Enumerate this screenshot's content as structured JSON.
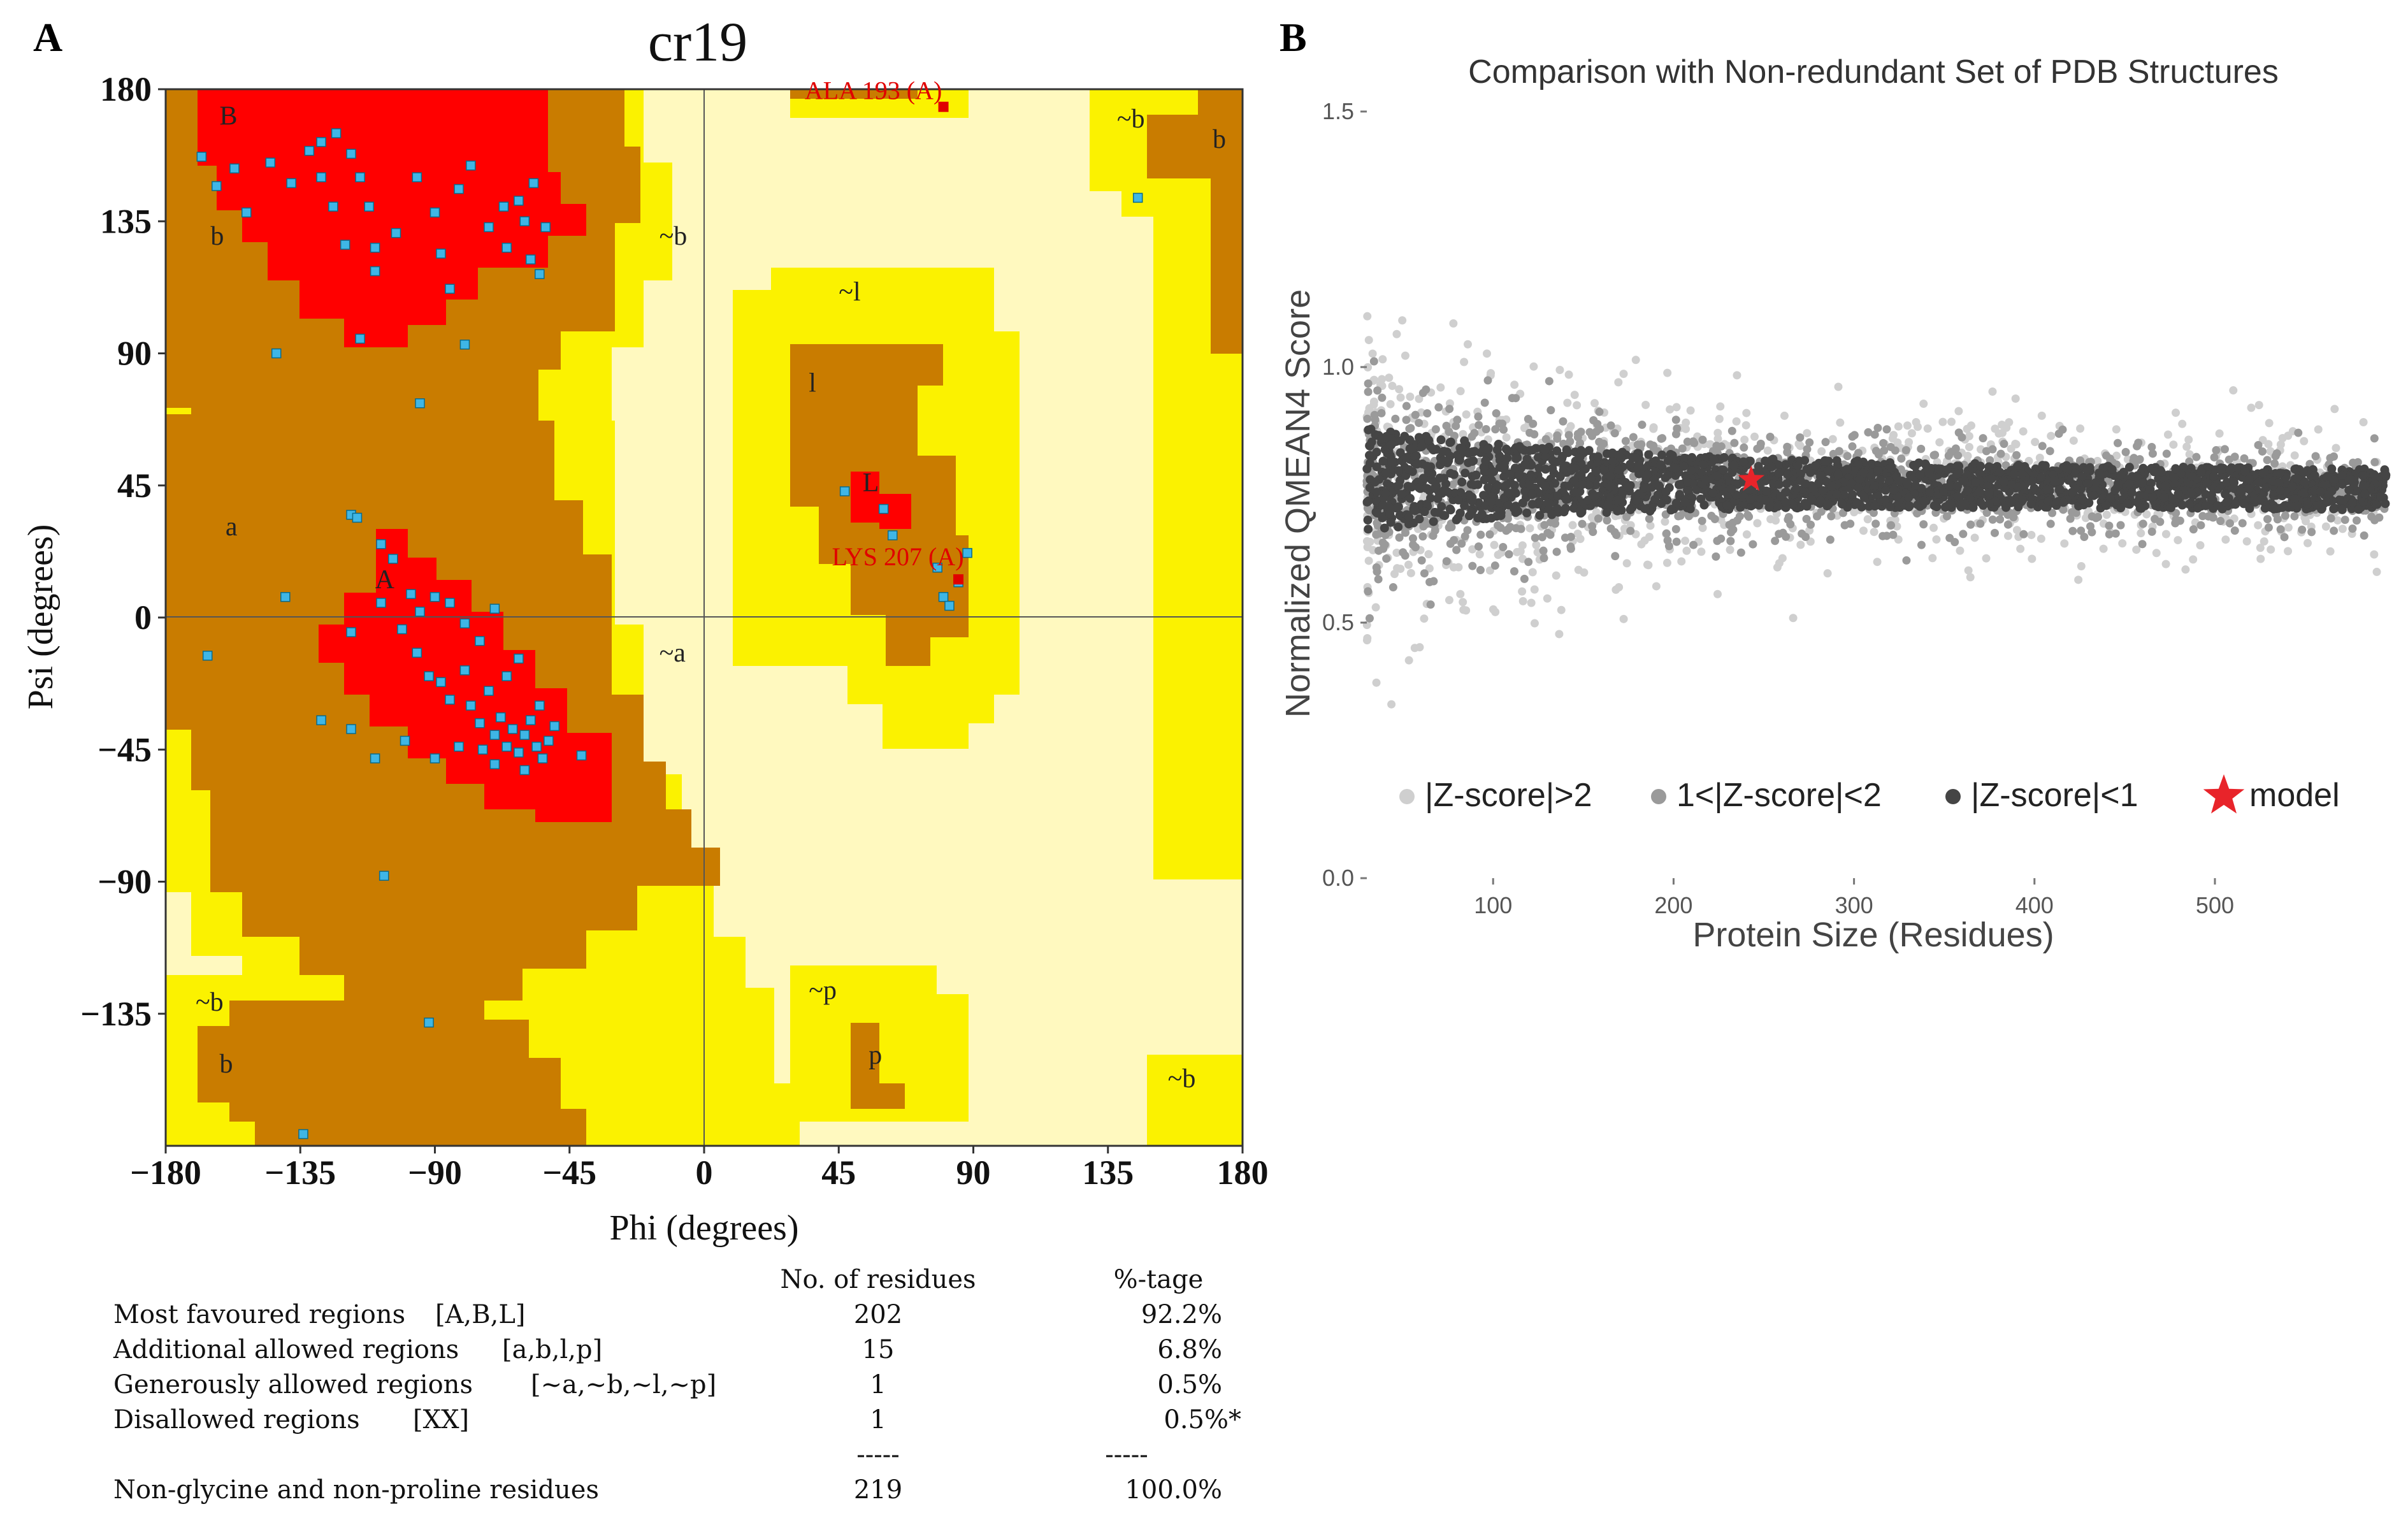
{
  "panels": {
    "a": {
      "letter": "A",
      "title": "cr19",
      "xlabel": "Phi (degrees)",
      "ylabel": "Psi (degrees)",
      "region_labels": [
        "B",
        "b",
        "a",
        "A",
        "~b",
        "~b",
        "b",
        "~a",
        "~l",
        "l",
        "L",
        "~p",
        "p",
        "~b",
        "b",
        "~b"
      ],
      "outlier_labels": [
        "ALA 193 (A)",
        "LYS 207 (A)"
      ]
    },
    "b": {
      "letter": "B"
    }
  },
  "stats": {
    "header_n": "No. of residues",
    "header_pct": "%-tage",
    "rows": [
      {
        "label": "Most favoured regions",
        "code": "[A,B,L]",
        "n": "202",
        "pct": "92.2%"
      },
      {
        "label": "Additional allowed regions",
        "code": "[a,b,l,p]",
        "n": "15",
        "pct": "6.8%"
      },
      {
        "label": "Generously allowed regions",
        "code": "[~a,~b,~l,~p]",
        "n": "1",
        "pct": "0.5%"
      },
      {
        "label": "Disallowed regions",
        "code": "[XX]",
        "n": "1",
        "pct": "0.5%*"
      }
    ],
    "sep": "-----",
    "total": {
      "label": "Non-glycine and non-proline residues",
      "n": "219",
      "pct": "100.0%"
    }
  },
  "chart_data": [
    {
      "type": "scatter",
      "title": "cr19",
      "xlabel": "Phi (degrees)",
      "ylabel": "Psi (degrees)",
      "xlim": [
        -180,
        180
      ],
      "ylim": [
        -180,
        180
      ],
      "xticks": [
        "-180",
        "-135",
        "-90",
        "-45",
        "0",
        "45",
        "90",
        "135",
        "180"
      ],
      "yticks": [
        "180",
        "135",
        "90",
        "45",
        "0",
        "-45",
        "-90",
        "-135"
      ],
      "series": [
        {
          "name": "residues (approx.)",
          "color": "#3fb6e6",
          "points": [
            [
              -168,
              157
            ],
            [
              -163,
              147
            ],
            [
              -157,
              153
            ],
            [
              -153,
              138
            ],
            [
              -145,
              155
            ],
            [
              -138,
              148
            ],
            [
              -132,
              159
            ],
            [
              -128,
              162
            ],
            [
              -123,
              165
            ],
            [
              -128,
              150
            ],
            [
              -118,
              158
            ],
            [
              -115,
              150
            ],
            [
              -112,
              140
            ],
            [
              -124,
              140
            ],
            [
              -120,
              127
            ],
            [
              -110,
              126
            ],
            [
              -103,
              131
            ],
            [
              -96,
              150
            ],
            [
              -90,
              138
            ],
            [
              -88,
              124
            ],
            [
              -82,
              146
            ],
            [
              -78,
              154
            ],
            [
              -72,
              133
            ],
            [
              -67,
              140
            ],
            [
              -66,
              126
            ],
            [
              -62,
              142
            ],
            [
              -60,
              135
            ],
            [
              -58,
              122
            ],
            [
              -57,
              148
            ],
            [
              -53,
              133
            ],
            [
              -55,
              117
            ],
            [
              -115,
              95
            ],
            [
              -143,
              90
            ],
            [
              -110,
              118
            ],
            [
              -85,
              112
            ],
            [
              -80,
              93
            ],
            [
              -95,
              73
            ],
            [
              -118,
              35
            ],
            [
              -116,
              34
            ],
            [
              -108,
              25
            ],
            [
              -104,
              20
            ],
            [
              -140,
              7
            ],
            [
              -118,
              -5
            ],
            [
              -108,
              5
            ],
            [
              -101,
              -4
            ],
            [
              -98,
              8
            ],
            [
              -95,
              2
            ],
            [
              -90,
              7
            ],
            [
              -85,
              5
            ],
            [
              -80,
              -2
            ],
            [
              -75,
              -8
            ],
            [
              -70,
              3
            ],
            [
              -96,
              -12
            ],
            [
              -92,
              -20
            ],
            [
              -88,
              -22
            ],
            [
              -85,
              -28
            ],
            [
              -80,
              -18
            ],
            [
              -78,
              -30
            ],
            [
              -75,
              -36
            ],
            [
              -72,
              -25
            ],
            [
              -70,
              -40
            ],
            [
              -68,
              -34
            ],
            [
              -66,
              -44
            ],
            [
              -64,
              -38
            ],
            [
              -62,
              -46
            ],
            [
              -60,
              -40
            ],
            [
              -58,
              -35
            ],
            [
              -56,
              -44
            ],
            [
              -55,
              -30
            ],
            [
              -54,
              -48
            ],
            [
              -52,
              -42
            ],
            [
              -50,
              -37
            ],
            [
              -66,
              -20
            ],
            [
              -62,
              -14
            ],
            [
              -100,
              -42
            ],
            [
              -110,
              -48
            ],
            [
              -90,
              -48
            ],
            [
              -82,
              -44
            ],
            [
              -74,
              -45
            ],
            [
              -70,
              -50
            ],
            [
              -60,
              -52
            ],
            [
              -41,
              -47
            ],
            [
              -166,
              -13
            ],
            [
              -128,
              -35
            ],
            [
              -118,
              -38
            ],
            [
              -107,
              -88
            ],
            [
              -92,
              -138
            ],
            [
              -134,
              -176
            ],
            [
              47,
              43
            ],
            [
              60,
              37
            ],
            [
              63,
              28
            ],
            [
              78,
              17
            ],
            [
              80,
              7
            ],
            [
              85,
              12
            ],
            [
              88,
              22
            ],
            [
              82,
              4
            ],
            [
              145,
              143
            ]
          ]
        },
        {
          "name": "outliers",
          "color": "#e00000",
          "points": [
            [
              80,
              174
            ],
            [
              85,
              13
            ]
          ]
        }
      ]
    },
    {
      "type": "scatter",
      "title": "Comparison with Non-redundant Set of PDB Structures",
      "xlabel": "Protein Size (Residues)",
      "ylabel": "Normalized QMEAN4 Score",
      "xlim": [
        30,
        595
      ],
      "ylim": [
        0.0,
        1.5
      ],
      "xticks": [
        "100",
        "200",
        "300",
        "400",
        "500"
      ],
      "yticks": [
        "0.0",
        "0.5",
        "1.0",
        "1.5"
      ],
      "legend": [
        {
          "label": "|Z-score|>2",
          "color": "#cfcfcf"
        },
        {
          "label": "1<|Z-score|<2",
          "color": "#9a9a9a"
        },
        {
          "label": "|Z-score|<1",
          "color": "#454545"
        },
        {
          "label": "model",
          "color": "#e8242a"
        }
      ],
      "band_center": [
        [
          30,
          0.78
        ],
        [
          300,
          0.78
        ],
        [
          595,
          0.76
        ]
      ],
      "model": {
        "x": 243,
        "y": 0.78
      }
    }
  ]
}
